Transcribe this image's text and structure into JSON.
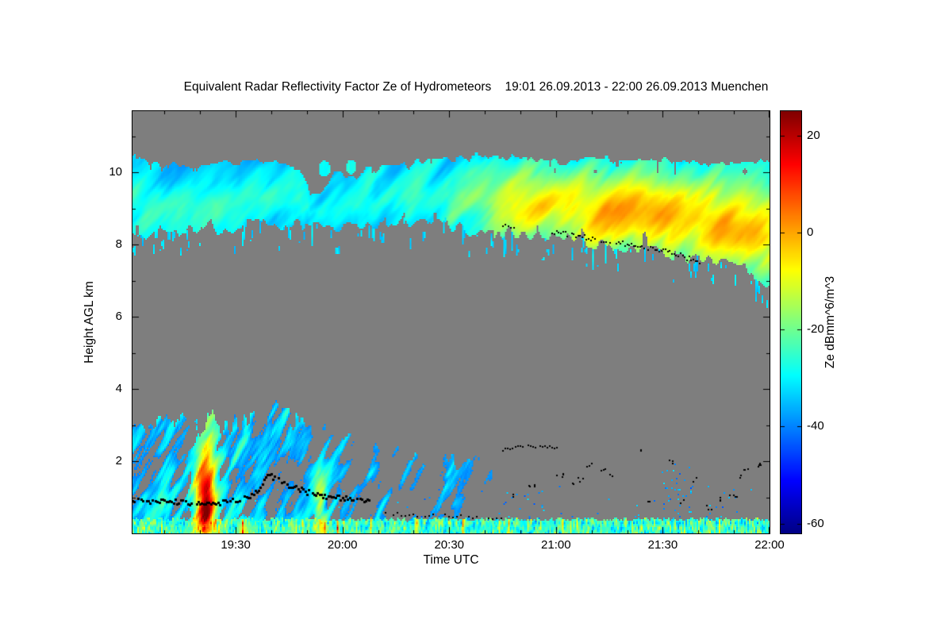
{
  "page": {
    "background_color": "#ffffff"
  },
  "chart_data": {
    "type": "heatmap",
    "title": "Equivalent Radar Reflectivity Factor Ze of Hydrometeors    19:01 26.09.2013 - 22:00 26.09.2013 Muenchen",
    "station": "Muenchen",
    "time_range_label": "19:01 26.09.2013 - 22:00 26.09.2013",
    "xlabel": "Time UTC",
    "ylabel": "Height AGL km",
    "x_start_label": "19:01",
    "x_total_minutes": 179,
    "x_ticks": [
      {
        "minute": 29,
        "label": "19:30"
      },
      {
        "minute": 59,
        "label": "20:00"
      },
      {
        "minute": 89,
        "label": "20:30"
      },
      {
        "minute": 119,
        "label": "21:00"
      },
      {
        "minute": 149,
        "label": "21:30"
      },
      {
        "minute": 179,
        "label": "22:00"
      }
    ],
    "x_minor_step": 10,
    "ylim": [
      0,
      11.7
    ],
    "y_ticks": [
      {
        "km": 2,
        "label": "2"
      },
      {
        "km": 4,
        "label": "4"
      },
      {
        "km": 6,
        "label": "6"
      },
      {
        "km": 8,
        "label": "8"
      },
      {
        "km": 10,
        "label": "10"
      }
    ],
    "y_minor_step": 1,
    "nodata_color": "#7e7e7e",
    "dot_color": "#000000",
    "colorbar": {
      "label": "Ze dBmm^6/m^3",
      "min": -62,
      "max": 25,
      "ticks": [
        {
          "value": 20,
          "label": "20"
        },
        {
          "value": 0,
          "label": "0"
        },
        {
          "value": -20,
          "label": "-20"
        },
        {
          "value": -40,
          "label": "-40"
        },
        {
          "value": -60,
          "label": "-60"
        }
      ]
    },
    "jet_stops": [
      [
        0,
        [
          0,
          0,
          131
        ]
      ],
      [
        0.125,
        [
          0,
          0,
          255
        ]
      ],
      [
        0.375,
        [
          0,
          255,
          255
        ]
      ],
      [
        0.625,
        [
          255,
          255,
          0
        ]
      ],
      [
        0.875,
        [
          255,
          0,
          0
        ]
      ],
      [
        1,
        [
          128,
          0,
          0
        ]
      ]
    ],
    "upper_cloud": {
      "top_pts": [
        [
          0,
          10.45
        ],
        [
          8,
          10.2
        ],
        [
          16,
          10.15
        ],
        [
          24,
          10.25
        ],
        [
          32,
          10.3
        ],
        [
          40,
          10.25
        ],
        [
          47,
          10.05
        ],
        [
          50,
          9.5
        ],
        [
          53,
          9.35
        ],
        [
          57,
          10.05
        ],
        [
          60,
          9.9
        ],
        [
          63,
          9.85
        ],
        [
          66,
          10.1
        ],
        [
          72,
          10.15
        ],
        [
          80,
          10.3
        ],
        [
          90,
          10.4
        ],
        [
          100,
          10.5
        ],
        [
          110,
          10.4
        ],
        [
          120,
          10.3
        ],
        [
          130,
          10.4
        ],
        [
          140,
          10.3
        ],
        [
          150,
          10.35
        ],
        [
          160,
          10.25
        ],
        [
          170,
          10.3
        ],
        [
          179,
          10.25
        ]
      ],
      "bot_pts": [
        [
          0,
          8.3
        ],
        [
          10,
          8.45
        ],
        [
          20,
          8.4
        ],
        [
          30,
          8.5
        ],
        [
          40,
          8.55
        ],
        [
          50,
          8.5
        ],
        [
          60,
          8.45
        ],
        [
          70,
          8.55
        ],
        [
          80,
          8.6
        ],
        [
          90,
          8.5
        ],
        [
          100,
          8.35
        ],
        [
          110,
          8.3
        ],
        [
          118,
          8.25
        ],
        [
          126,
          8.1
        ],
        [
          134,
          8.0
        ],
        [
          142,
          7.9
        ],
        [
          150,
          7.8
        ],
        [
          158,
          7.65
        ],
        [
          166,
          7.5
        ],
        [
          172,
          7.3
        ],
        [
          179,
          7.0
        ]
      ],
      "top_fuzz": 0.18,
      "bot_fuzz": 0.35,
      "base": -33,
      "noise_amp": 10,
      "streak_shear": 8,
      "core_gain": 5,
      "hole_threshold": 0.3,
      "fringe_threshold": 0.72,
      "boosts": [
        {
          "ct": 150,
          "ch": 8.8,
          "st": 28,
          "sh": 0.9,
          "amp": 23
        },
        {
          "ct": 116,
          "ch": 9.2,
          "st": 16,
          "sh": 0.8,
          "amp": 11
        },
        {
          "ct": 174,
          "ch": 7.9,
          "st": 10,
          "sh": 0.7,
          "amp": 15
        }
      ],
      "blobs": [
        {
          "ct": 54,
          "ch": 10.1,
          "rt": 1.6,
          "rh": 0.22
        },
        {
          "ct": 61.5,
          "ch": 10.15,
          "rt": 1.4,
          "rh": 0.2
        }
      ]
    },
    "lower_precip": {
      "t_end": 101,
      "h_cap": 3.7,
      "top_pts": [
        [
          0,
          3.45
        ],
        [
          8,
          3.1
        ],
        [
          14,
          3.3
        ],
        [
          20,
          3.25
        ],
        [
          28,
          3.1
        ],
        [
          36,
          3.6
        ],
        [
          44,
          3.5
        ],
        [
          52,
          3.1
        ],
        [
          58,
          3.0
        ],
        [
          64,
          2.5
        ],
        [
          72,
          2.4
        ],
        [
          80,
          2.1
        ],
        [
          88,
          2.15
        ],
        [
          96,
          2.0
        ],
        [
          101,
          1.8
        ]
      ],
      "thresh_pts": [
        [
          0,
          0.42
        ],
        [
          30,
          0.4
        ],
        [
          50,
          0.46
        ],
        [
          60,
          0.52
        ],
        [
          75,
          0.55
        ],
        [
          90,
          0.55
        ],
        [
          101,
          0.6
        ]
      ],
      "base": -40,
      "density_gain": 40,
      "streak_shear": 5,
      "boosts": [
        {
          "ct": 20.5,
          "ch": 0.5,
          "st": 2.0,
          "sh": 0.8,
          "amp": 46
        },
        {
          "ct": 20.5,
          "ch": 1.6,
          "st": 2.6,
          "sh": 1.1,
          "amp": 24
        },
        {
          "ct": 53,
          "ch": 0.4,
          "st": 1.3,
          "sh": 0.9,
          "amp": 28
        },
        {
          "ct": 31,
          "ch": 0.15,
          "st": 1.2,
          "sh": 0.3,
          "amp": 22
        }
      ]
    },
    "surface_layer": {
      "height": 0.3,
      "wiggle": 0.18,
      "base": -30,
      "noise_amp": 18,
      "hotspot_threshold": 0.66,
      "hotspot_gain": 110,
      "hotspot_gain_late": 70,
      "hotspot_t_end": 105
    },
    "speckle": {
      "base_prob": 0.008,
      "h_max": 1.3,
      "value_base": -44,
      "value_amp": 12,
      "clusters": [
        {
          "t0": 148,
          "t1": 157,
          "h0": 0.3,
          "h1": 2.0,
          "prob": 0.05
        },
        {
          "t0": 103,
          "t1": 116,
          "h0": 0.3,
          "h1": 1.2,
          "prob": 0.04
        },
        {
          "t0": 160,
          "t1": 170,
          "h0": 0.3,
          "h1": 1.0,
          "prob": 0.03
        }
      ]
    },
    "dot_tracks": [
      {
        "name": "melting-layer-early",
        "pts": [
          [
            0,
            0.92
          ],
          [
            6,
            0.88
          ],
          [
            12,
            0.9
          ],
          [
            18,
            0.8
          ],
          [
            24,
            0.85
          ],
          [
            30,
            0.95
          ],
          [
            33,
            1.05
          ],
          [
            36,
            1.3
          ],
          [
            38,
            1.62
          ],
          [
            40,
            1.55
          ],
          [
            44,
            1.35
          ],
          [
            48,
            1.18
          ],
          [
            52,
            1.08
          ],
          [
            57,
            1.0
          ],
          [
            62,
            0.93
          ],
          [
            67,
            0.9
          ]
        ],
        "spacing": 0.5,
        "jitter": 0.07,
        "size": 3,
        "keep": 0.85
      },
      {
        "name": "near-surface-mid",
        "pts": [
          [
            70,
            0.55
          ],
          [
            80,
            0.5
          ],
          [
            90,
            0.47
          ],
          [
            100,
            0.44
          ],
          [
            106,
            0.44
          ]
        ],
        "spacing": 1.1,
        "jitter": 0.05,
        "size": 2,
        "keep": 0.8
      },
      {
        "name": "level-2km-line",
        "pts": [
          [
            104,
            2.32
          ],
          [
            109,
            2.42
          ],
          [
            114,
            2.42
          ],
          [
            120,
            2.36
          ]
        ],
        "spacing": 0.7,
        "jitter": 0.04,
        "size": 2,
        "keep": 0.9
      },
      {
        "name": "upper-cloud-base",
        "pts": [
          [
            118,
            8.35
          ],
          [
            124,
            8.25
          ],
          [
            130,
            8.15
          ],
          [
            136,
            8.05
          ],
          [
            142,
            7.95
          ],
          [
            148,
            7.85
          ],
          [
            154,
            7.7
          ],
          [
            160,
            7.5
          ]
        ],
        "spacing": 0.6,
        "jitter": 0.07,
        "size": 2,
        "keep": 0.85
      },
      {
        "name": "upper-cloud-base-lead",
        "pts": [
          [
            104,
            8.55
          ],
          [
            108,
            8.45
          ]
        ],
        "spacing": 0.8,
        "jitter": 0.05,
        "size": 2,
        "keep": 0.9
      }
    ],
    "scatter_dots": [
      [
        108,
        1.05
      ],
      [
        112,
        1.3
      ],
      [
        120,
        1.62
      ],
      [
        123,
        1.42
      ],
      [
        126,
        1.5
      ],
      [
        128,
        1.88
      ],
      [
        132,
        1.72
      ],
      [
        135,
        1.58
      ],
      [
        143,
        2.28
      ],
      [
        146,
        0.88
      ],
      [
        152,
        1.95
      ],
      [
        155,
        0.9
      ],
      [
        158,
        1.48
      ],
      [
        162,
        0.7
      ],
      [
        166,
        0.95
      ],
      [
        169,
        1.05
      ],
      [
        170,
        1.55
      ],
      [
        173,
        1.82
      ],
      [
        176,
        1.9
      ]
    ]
  }
}
